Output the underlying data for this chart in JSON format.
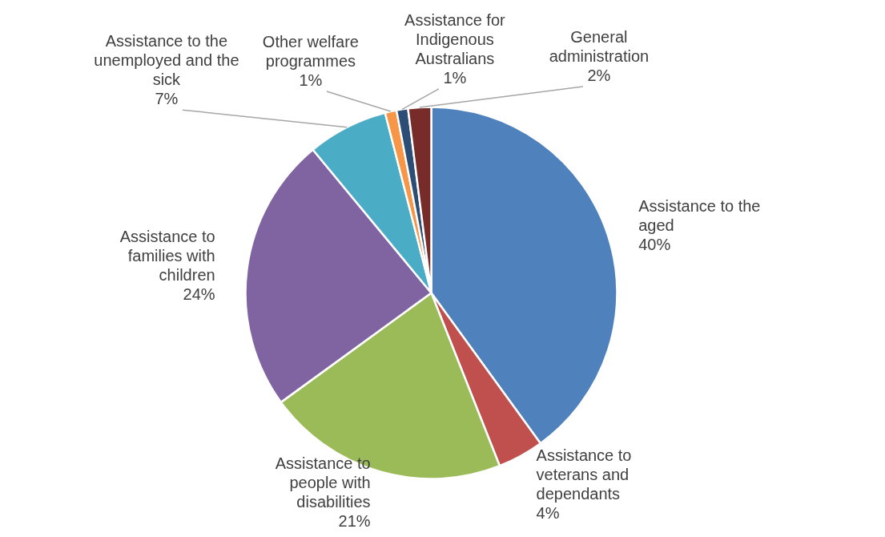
{
  "chart_data": {
    "type": "pie",
    "categories": [
      "Assistance to the aged",
      "Assistance to veterans and dependants",
      "Assistance to people with disabilities",
      "Assistance to families with children",
      "Assistance to the unemployed and the sick",
      "Other welfare programmes",
      "Assistance for Indigenous Australians",
      "General administration"
    ],
    "values": [
      40,
      4,
      21,
      24,
      7,
      1,
      1,
      2
    ],
    "value_labels": [
      "40%",
      "4%",
      "21%",
      "24%",
      "7%",
      "1%",
      "1%",
      "2%"
    ],
    "colors": [
      "#4f81bd",
      "#c0504d",
      "#9bbb59",
      "#8064a2",
      "#4bacc6",
      "#f79646",
      "#2c4d75",
      "#772c2a"
    ]
  }
}
